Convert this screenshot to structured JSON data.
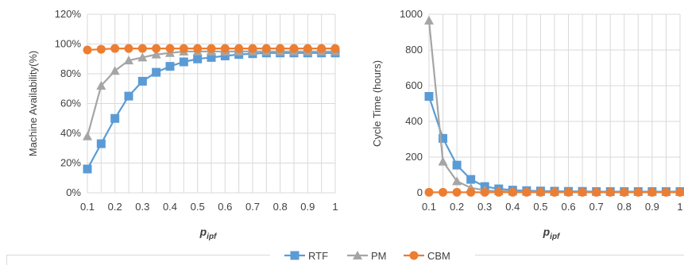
{
  "chart_data": [
    {
      "type": "line",
      "ylabel": "Machine Availability(%)",
      "xlabel_main": "p",
      "xlabel_sub": "ipf",
      "x": [
        0.1,
        0.15,
        0.2,
        0.25,
        0.3,
        0.35,
        0.4,
        0.45,
        0.5,
        0.55,
        0.6,
        0.65,
        0.7,
        0.75,
        0.8,
        0.85,
        0.9,
        0.95,
        1.0
      ],
      "xlim": [
        0.1,
        1.0
      ],
      "ylim": [
        0,
        120
      ],
      "xticks": [
        "0.1",
        "0.2",
        "0.3",
        "0.4",
        "0.5",
        "0.6",
        "0.7",
        "0.8",
        "0.9",
        "1"
      ],
      "yticks": [
        "0%",
        "20%",
        "40%",
        "60%",
        "80%",
        "100%",
        "120%"
      ],
      "series": [
        {
          "name": "RTF",
          "color": "#5b9bd5",
          "marker": "square",
          "values": [
            16,
            33,
            50,
            65,
            75,
            81,
            85,
            88,
            90,
            91,
            92,
            93,
            93.5,
            94,
            94,
            94,
            94,
            94,
            94
          ]
        },
        {
          "name": "PM",
          "color": "#a5a5a5",
          "marker": "triangle",
          "values": [
            38,
            72,
            82,
            89,
            91,
            93,
            94,
            95,
            95,
            95,
            95,
            95,
            95,
            95,
            95,
            95,
            95,
            95,
            95
          ]
        },
        {
          "name": "CBM",
          "color": "#ed7d31",
          "marker": "circle",
          "values": [
            96,
            96.5,
            97,
            97,
            97,
            97,
            97,
            97,
            97,
            97,
            97,
            97,
            97,
            97,
            97,
            97,
            97,
            97,
            97
          ]
        }
      ]
    },
    {
      "type": "line",
      "ylabel": "Cycle Time (hours)",
      "xlabel_main": "p",
      "xlabel_sub": "ipf",
      "x": [
        0.1,
        0.15,
        0.2,
        0.25,
        0.3,
        0.35,
        0.4,
        0.45,
        0.5,
        0.55,
        0.6,
        0.65,
        0.7,
        0.75,
        0.8,
        0.85,
        0.9,
        0.95,
        1.0
      ],
      "xlim": [
        0.1,
        1.0
      ],
      "ylim": [
        0,
        1000
      ],
      "xticks": [
        "0.1",
        "0.2",
        "0.3",
        "0.4",
        "0.5",
        "0.6",
        "0.7",
        "0.8",
        "0.9",
        "1"
      ],
      "yticks": [
        "0",
        "200",
        "400",
        "600",
        "800",
        "1000"
      ],
      "series": [
        {
          "name": "RTF",
          "color": "#5b9bd5",
          "marker": "square",
          "values": [
            540,
            305,
            155,
            75,
            35,
            22,
            15,
            12,
            10,
            9,
            8,
            8,
            7,
            7,
            7,
            7,
            7,
            7,
            7
          ]
        },
        {
          "name": "PM",
          "color": "#a5a5a5",
          "marker": "triangle",
          "values": [
            965,
            175,
            65,
            28,
            14,
            9,
            7,
            6,
            5,
            5,
            5,
            5,
            5,
            5,
            5,
            5,
            5,
            5,
            5
          ]
        },
        {
          "name": "CBM",
          "color": "#ed7d31",
          "marker": "circle",
          "values": [
            3,
            3,
            3,
            3,
            3,
            3,
            3,
            3,
            3,
            3,
            3,
            3,
            3,
            3,
            3,
            3,
            3,
            3,
            3
          ]
        }
      ]
    }
  ],
  "legend": {
    "placement": "bottom",
    "items": [
      {
        "label": "RTF",
        "color": "#5b9bd5",
        "marker": "square"
      },
      {
        "label": "PM",
        "color": "#a5a5a5",
        "marker": "triangle"
      },
      {
        "label": "CBM",
        "color": "#ed7d31",
        "marker": "circle"
      }
    ]
  }
}
